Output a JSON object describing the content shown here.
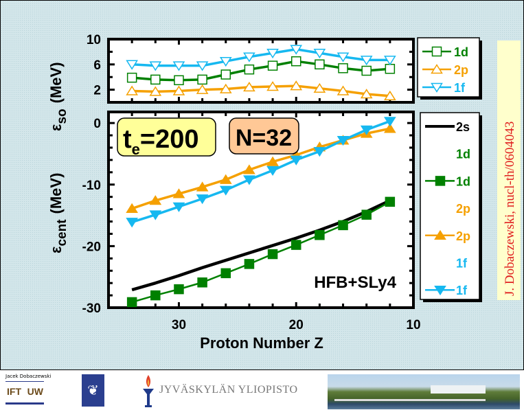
{
  "credit": "J. Dobaczewski, nucl-th/0604043",
  "annotations": {
    "te_main": "t",
    "te_sub": "e",
    "te_value": "=200",
    "neutron": "N=32",
    "model": "HFB+SLy4"
  },
  "colors": {
    "green": "#008000",
    "orange": "#f5a000",
    "cyan": "#16b8f0",
    "black": "#000000",
    "te_box": "#ffff99",
    "n_box": "#ffc896",
    "credit_box": "#ffffcc",
    "credit_text": "#e02020"
  },
  "footer": {
    "author": "Jacek Dobaczewski",
    "ift_left": "IFT",
    "ift_right": "UW",
    "university": "JYVÄSKYLÄN YLIOPISTO"
  },
  "chart_data": [
    {
      "type": "line",
      "name": "spin-orbit splitting",
      "ylabel_symbol": "ε",
      "ylabel_sub": "so",
      "ylabel_unit": "(MeV)",
      "xlabel": "",
      "x": [
        34,
        32,
        30,
        28,
        26,
        24,
        22,
        20,
        18,
        16,
        14,
        12
      ],
      "xlim": [
        36,
        10
      ],
      "ylim": [
        0,
        10
      ],
      "yticks": [
        2,
        6,
        10
      ],
      "legend_position": "right",
      "series": [
        {
          "name": "1d",
          "color": "#008000",
          "marker": "square-open",
          "values": [
            3.9,
            3.6,
            3.5,
            3.6,
            4.4,
            5.2,
            5.8,
            6.5,
            6.0,
            5.4,
            5.0,
            5.3
          ]
        },
        {
          "name": "2p",
          "color": "#f5a000",
          "marker": "triangle-up-open",
          "values": [
            1.8,
            1.7,
            1.8,
            2.0,
            2.1,
            2.4,
            2.5,
            2.6,
            2.2,
            1.8,
            1.3,
            1.0
          ]
        },
        {
          "name": "1f",
          "color": "#16b8f0",
          "marker": "triangle-down-open",
          "values": [
            6.0,
            5.8,
            5.8,
            5.8,
            6.5,
            7.2,
            7.8,
            8.4,
            7.8,
            7.2,
            6.7,
            6.7
          ]
        }
      ]
    },
    {
      "type": "line",
      "name": "centroid energies",
      "ylabel_symbol": "ε",
      "ylabel_sub": "cent",
      "ylabel_unit": "(MeV)",
      "xlabel": "Proton Number Z",
      "x": [
        34,
        32,
        30,
        28,
        26,
        24,
        22,
        20,
        18,
        16,
        14,
        12
      ],
      "xlim": [
        36,
        10
      ],
      "xticks": [
        30,
        20,
        10
      ],
      "ylim": [
        -30,
        1.8
      ],
      "yticks": [
        0,
        -10,
        -20,
        -30
      ],
      "legend_position": "right",
      "legend_labels": [
        "2s",
        "1d",
        "1d",
        "2p",
        "2p",
        "1f",
        "1f"
      ],
      "series": [
        {
          "name": "2s",
          "color": "#000000",
          "marker": "none",
          "values": [
            -27.1,
            -26.0,
            -24.8,
            -23.5,
            -22.3,
            -21.1,
            -19.9,
            -18.7,
            -17.4,
            -16.0,
            -14.4,
            -12.6
          ]
        },
        {
          "name": "1d",
          "color": "#008000",
          "marker": "square-filled",
          "values": [
            -29.1,
            -28.0,
            -27.0,
            -25.9,
            -24.4,
            -22.9,
            -21.3,
            -19.8,
            -18.2,
            -16.6,
            -14.9,
            -12.8
          ]
        },
        {
          "name": "2p",
          "color": "#f5a000",
          "marker": "triangle-up-filled",
          "values": [
            -13.9,
            -12.6,
            -11.5,
            -10.4,
            -9.2,
            -7.6,
            -6.3,
            -5.2,
            -3.9,
            -2.8,
            -1.7,
            -0.9
          ]
        },
        {
          "name": "1f",
          "color": "#16b8f0",
          "marker": "triangle-down-filled",
          "values": [
            -16.1,
            -14.9,
            -13.6,
            -12.3,
            -10.9,
            -9.2,
            -7.7,
            -6.0,
            -4.6,
            -2.8,
            -1.1,
            0.3
          ]
        }
      ]
    }
  ]
}
